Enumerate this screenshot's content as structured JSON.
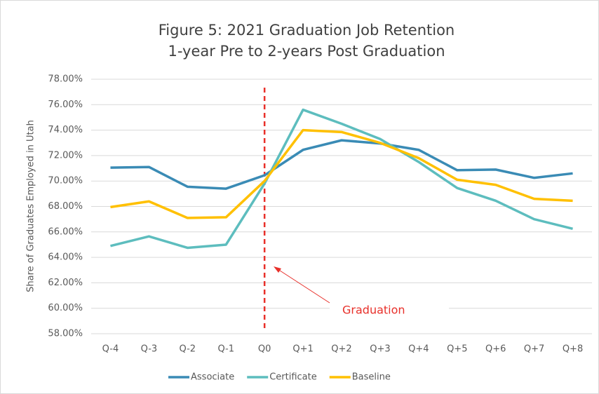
{
  "chart_data": {
    "type": "line",
    "title": "Figure 5: 2021 Graduation Job Retention",
    "subtitle": "1-year Pre to 2-years Post Graduation",
    "y_label": "Share of Graduates Employed in Utah",
    "annotation": "Graduation",
    "categories": [
      "Q-4",
      "Q-3",
      "Q-2",
      "Q-1",
      "Q0",
      "Q+1",
      "Q+2",
      "Q+3",
      "Q+4",
      "Q+5",
      "Q+6",
      "Q+7",
      "Q+8"
    ],
    "series": [
      {
        "name": "Associate",
        "color": "#3a8bb5",
        "values": [
          71.05,
          71.1,
          69.55,
          69.4,
          70.45,
          72.45,
          73.2,
          72.95,
          72.45,
          70.85,
          70.9,
          70.25,
          70.6
        ]
      },
      {
        "name": "Certificate",
        "color": "#5dbdbe",
        "values": [
          64.9,
          65.65,
          64.75,
          65.0,
          69.8,
          75.6,
          74.5,
          73.3,
          71.5,
          69.45,
          68.45,
          67.0,
          66.25
        ]
      },
      {
        "name": "Baseline",
        "color": "#ffc000",
        "values": [
          67.95,
          68.4,
          67.1,
          67.15,
          70.0,
          74.0,
          73.85,
          73.0,
          71.8,
          70.1,
          69.7,
          68.6,
          68.45
        ]
      }
    ],
    "ylim": [
      58,
      78
    ],
    "yticks": [
      {
        "value": 58,
        "label": "58.00%"
      },
      {
        "value": 60,
        "label": "60.00%"
      },
      {
        "value": 62,
        "label": "62.00%"
      },
      {
        "value": 64,
        "label": "64.00%"
      },
      {
        "value": 66,
        "label": "66.00%"
      },
      {
        "value": 68,
        "label": "68.00%"
      },
      {
        "value": 70,
        "label": "70.00%"
      },
      {
        "value": 72,
        "label": "72.00%"
      },
      {
        "value": 74,
        "label": "74.00%"
      },
      {
        "value": 76,
        "label": "76.00%"
      },
      {
        "value": 78,
        "label": "78.00%"
      }
    ],
    "grid": true,
    "legend": "bottom"
  }
}
